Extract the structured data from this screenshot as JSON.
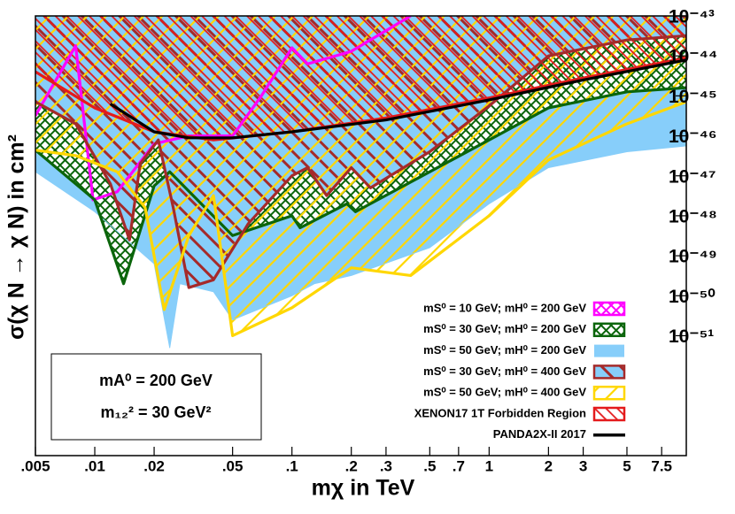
{
  "chart_data": {
    "type": "line",
    "xlabel": "mχ  in TeV",
    "ylabel": "σ(χ N → χ N) in cm²",
    "annotations": [
      "mA⁰ = 200 GeV",
      "m₁₂² = 30 GeV²"
    ],
    "xscale": "log",
    "yscale": "log",
    "xlim": [
      0.005,
      10
    ],
    "ylim": [
      1e-54,
      1e-43
    ],
    "xticks": [
      {
        "value": 0.005,
        "label": ".005"
      },
      {
        "value": 0.01,
        "label": ".01"
      },
      {
        "value": 0.02,
        "label": ".02"
      },
      {
        "value": 0.05,
        "label": ".05"
      },
      {
        "value": 0.1,
        "label": ".1"
      },
      {
        "value": 0.2,
        "label": ".2"
      },
      {
        "value": 0.3,
        "label": ".3"
      },
      {
        "value": 0.5,
        "label": ".5"
      },
      {
        "value": 0.7,
        "label": ".7"
      },
      1,
      2,
      3,
      5,
      7.5
    ],
    "yticks": [
      {
        "value": 1e-43,
        "label": "10⁻⁴³"
      },
      {
        "value": 1e-44,
        "label": "10⁻⁴⁴"
      },
      {
        "value": 1e-45,
        "label": "10⁻⁴⁵"
      },
      {
        "value": 1e-46,
        "label": "10⁻⁴⁶"
      },
      {
        "value": 1e-47,
        "label": "10⁻⁴⁷"
      },
      {
        "value": 1e-48,
        "label": "10⁻⁴⁸"
      },
      {
        "value": 1e-49,
        "label": "10⁻⁴⁹"
      },
      {
        "value": 1e-50,
        "label": "10⁻⁵⁰"
      },
      {
        "value": 1e-51,
        "label": "10⁻⁵¹"
      }
    ],
    "legend": "lower right",
    "series": [
      {
        "name": "mS⁰ = 10 GeV; mH⁰ = 200 GeV",
        "color": "#ff00ff",
        "style": "crosshatch",
        "x": [
          0.005,
          0.008,
          0.0098,
          0.013,
          0.02,
          0.03,
          0.05,
          0.07,
          0.1,
          0.12,
          0.2,
          0.4
        ],
        "values": [
          3.2e-46,
          1.8e-44,
          2.5e-48,
          4e-48,
          6.3e-47,
          1e-46,
          1e-46,
          1e-45,
          1.6e-44,
          6.3e-45,
          1.3e-44,
          1e-43
        ]
      },
      {
        "name": "mS⁰ = 30 GeV; mH⁰ = 200 GeV",
        "color": "#0b650b",
        "style": "crosshatch",
        "x": [
          0.005,
          0.01,
          0.014,
          0.02,
          0.024,
          0.05,
          0.1,
          0.11,
          0.19,
          0.21,
          0.5,
          1,
          2,
          5,
          10
        ],
        "values": [
          4.4e-47,
          2.5e-48,
          2e-50,
          5.6e-48,
          1.26e-47,
          3.2e-49,
          1e-48,
          5e-49,
          2e-48,
          1.26e-48,
          1.26e-47,
          7.9e-47,
          5e-46,
          1.26e-45,
          1.6e-45
        ]
      },
      {
        "name": "mS⁰ = 50 GeV; mH⁰ = 200 GeV",
        "color": "#87cefa",
        "style": "solid",
        "x": [
          0.005,
          0.01,
          0.02,
          0.024,
          0.027,
          0.04,
          0.05,
          0.1,
          0.13,
          0.2,
          0.5,
          1,
          2,
          5,
          10
        ],
        "values": [
          1.26e-47,
          1.26e-48,
          6.3e-50,
          5e-52,
          2e-50,
          1.26e-50,
          2.5e-51,
          1e-50,
          2e-50,
          3.2e-50,
          1.6e-49,
          2e-48,
          1.6e-47,
          4e-47,
          5.6e-47
        ]
      },
      {
        "name": "mS⁰ = 30 GeV; mH⁰ = 400 GeV",
        "color": "#a52a2a",
        "style": "hatch-left",
        "x": [
          0.005,
          0.008,
          0.012,
          0.015,
          0.017,
          0.021,
          0.025,
          0.03,
          0.04,
          0.06,
          0.1,
          0.12,
          0.15,
          0.2,
          0.25,
          0.5,
          1,
          2,
          5,
          10
        ],
        "values": [
          7.1e-46,
          2e-46,
          6.3e-48,
          2.5e-49,
          2e-47,
          7.9e-47,
          1.6e-48,
          1.6e-50,
          2.5e-50,
          6.3e-49,
          1e-47,
          1.6e-47,
          3.2e-48,
          1.6e-47,
          5e-48,
          4e-47,
          5.6e-46,
          1e-44,
          2.5e-44,
          3.2e-44
        ]
      },
      {
        "name": "mS⁰ = 50 GeV; mH⁰ = 400 GeV",
        "color": "#ffd700",
        "style": "hatch-right",
        "x": [
          0.005,
          0.008,
          0.013,
          0.018,
          0.0225,
          0.03,
          0.04,
          0.05,
          0.1,
          0.2,
          0.4,
          1,
          2,
          5,
          10
        ],
        "values": [
          4.4e-47,
          3.2e-47,
          1.26e-47,
          1.6e-48,
          4.5e-51,
          3.2e-49,
          3.2e-48,
          1e-51,
          5e-51,
          5e-50,
          3.2e-50,
          1e-48,
          2.5e-47,
          2e-46,
          7.1e-46
        ]
      },
      {
        "name": "XENON17 1T Forbidden Region",
        "color": "#e41a1c",
        "style": "hatch-dense",
        "x": [
          0.005,
          0.01,
          0.02,
          0.04,
          0.1,
          0.3,
          1,
          3,
          10
        ],
        "values": [
          4e-45,
          5e-46,
          1.26e-46,
          7.9e-47,
          1.26e-46,
          2.8e-46,
          8.9e-46,
          2.8e-45,
          8.9e-45
        ]
      },
      {
        "name": "PANDA2X-II 2017",
        "color": "#000000",
        "style": "line",
        "x": [
          0.012,
          0.02,
          0.03,
          0.05,
          0.1,
          0.3,
          1,
          3,
          10
        ],
        "values": [
          6.3e-46,
          1.26e-46,
          8.9e-47,
          8.9e-47,
          1.26e-46,
          2.5e-46,
          7.9e-46,
          2.5e-45,
          7.9e-45
        ]
      }
    ]
  }
}
